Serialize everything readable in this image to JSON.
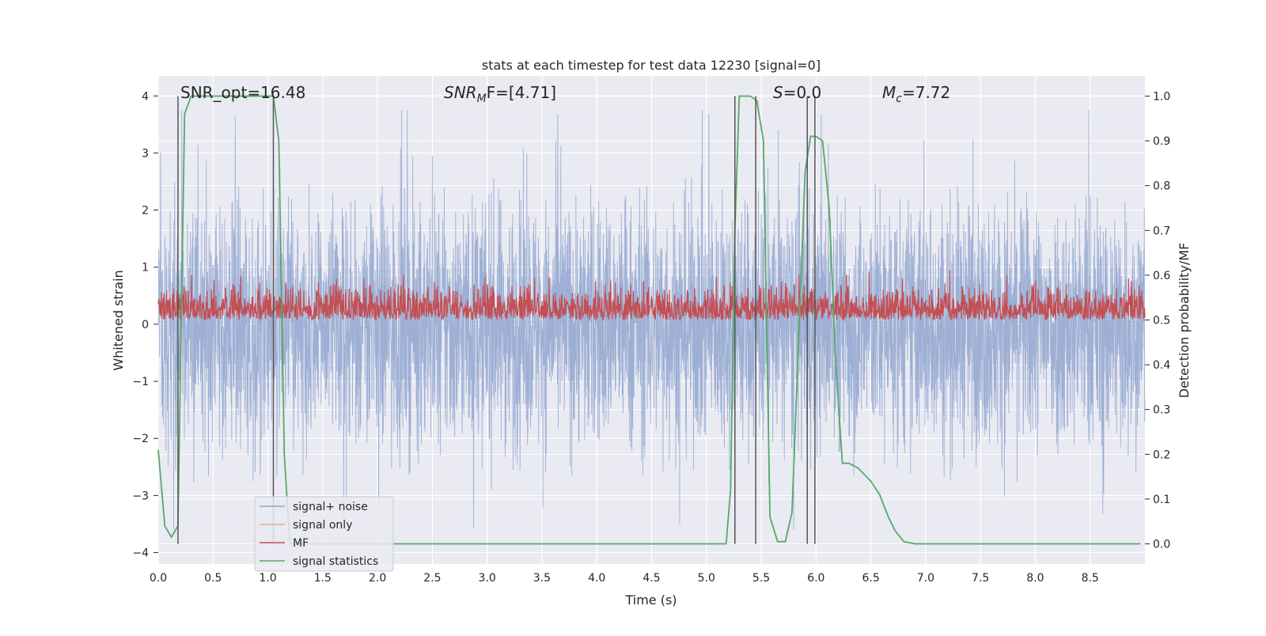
{
  "chart_data": {
    "type": "line",
    "title": "stats at each timestep for test data 12230 [signal=0]",
    "xlabel": "Time (s)",
    "ylabel": "Whitened strain",
    "y2label": "Detection probability/MF",
    "xlim": [
      0.0,
      9.0
    ],
    "ylim": [
      -4.2,
      4.35
    ],
    "y2lim": [
      -0.045,
      1.045
    ],
    "x_ticks": [
      "0.0",
      "0.5",
      "1.0",
      "1.5",
      "2.0",
      "2.5",
      "3.0",
      "3.5",
      "4.0",
      "4.5",
      "5.0",
      "5.5",
      "6.0",
      "6.5",
      "7.0",
      "7.5",
      "8.0",
      "8.5"
    ],
    "y_ticks": [
      "−4",
      "−3",
      "−2",
      "−1",
      "0",
      "1",
      "2",
      "3",
      "4"
    ],
    "y2_ticks": [
      "0.0",
      "0.1",
      "0.2",
      "0.3",
      "0.4",
      "0.5",
      "0.6",
      "0.7",
      "0.8",
      "0.9",
      "1.0"
    ],
    "grid": true,
    "legend_position": "lower-left",
    "annotations": {
      "snr_opt": "SNR_opt=16.48",
      "snr_mf": "SNR",
      "snr_mf_sub": "M",
      "snr_mf_rest": "F=[4.71]",
      "s_var": "S",
      "s_rest": "=0.0",
      "mc_var": "M",
      "mc_sub": "c",
      "mc_rest": "=7.72"
    },
    "series": [
      {
        "name": "signal+ noise",
        "color": "#8fa5cf",
        "axis": "left",
        "description_values": "noise envelope approx between -3.3 and 3.8"
      },
      {
        "name": "signal only",
        "color": "#e8a98a",
        "axis": "left",
        "values": []
      },
      {
        "name": "MF",
        "color": "#c44e52",
        "axis": "right",
        "baseline": 0.5,
        "range": [
          0.5,
          0.62
        ]
      },
      {
        "name": "signal statistics",
        "color": "#55a868",
        "axis": "right",
        "x": [
          0.0,
          0.06,
          0.12,
          0.18,
          0.24,
          0.3,
          0.4,
          1.0,
          1.05,
          1.1,
          1.15,
          1.2,
          1.25,
          1.3,
          5.18,
          5.22,
          5.26,
          5.3,
          5.35,
          5.4,
          5.46,
          5.52,
          5.58,
          5.65,
          5.72,
          5.78,
          5.84,
          5.9,
          5.95,
          6.0,
          6.06,
          6.12,
          6.18,
          6.24,
          6.3,
          6.38,
          6.5,
          6.58,
          6.66,
          6.72,
          6.8,
          6.9,
          7.5,
          8.96
        ],
        "values": [
          0.21,
          0.04,
          0.015,
          0.04,
          0.96,
          1.0,
          1.0,
          1.0,
          1.0,
          0.9,
          0.2,
          0.0,
          0.0,
          0.0,
          0.0,
          0.12,
          0.7,
          1.0,
          1.0,
          1.0,
          0.99,
          0.9,
          0.06,
          0.005,
          0.005,
          0.07,
          0.45,
          0.83,
          0.91,
          0.91,
          0.9,
          0.75,
          0.4,
          0.18,
          0.18,
          0.17,
          0.14,
          0.11,
          0.06,
          0.03,
          0.005,
          0.0,
          0.0,
          0.0
        ]
      }
    ],
    "vertical_lines_x": [
      0.18,
      1.05,
      5.26,
      5.45,
      5.92,
      5.99
    ]
  }
}
